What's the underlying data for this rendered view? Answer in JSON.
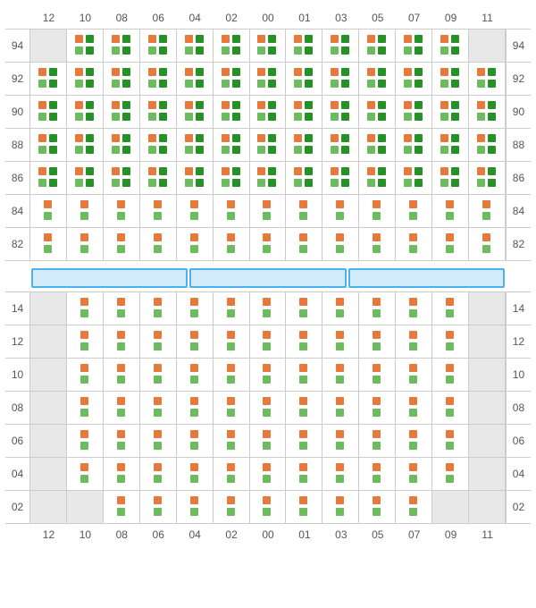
{
  "colors": {
    "orange": "#e67a3c",
    "green": "#6dbb5f",
    "darkgreen": "#269126",
    "grey_bg": "#e8e8e8",
    "grid_line": "#cccccc",
    "label": "#555555",
    "divider_border": "#4db1f0",
    "divider_fill": "#d3ecfb",
    "page_bg": "#ffffff"
  },
  "cols": [
    "12",
    "10",
    "08",
    "06",
    "04",
    "02",
    "00",
    "01",
    "03",
    "05",
    "07",
    "09",
    "11"
  ],
  "top_rows": [
    "94",
    "92",
    "90",
    "88",
    "86",
    "84",
    "82"
  ],
  "bot_rows": [
    "14",
    "12",
    "10",
    "08",
    "06",
    "04",
    "02"
  ],
  "divider_segments": 3,
  "seat": {
    "double": {
      "tl": "orange",
      "bl": "green",
      "tr": "darkgreen",
      "br": "darkgreen"
    },
    "single": {
      "t": "orange",
      "b": "green"
    }
  },
  "top_layout": [
    {
      "row": "94",
      "c": {
        "12": "g",
        "10": "d",
        "08": "d",
        "06": "d",
        "04": "d",
        "02": "d",
        "00": "d",
        "01": "d",
        "03": "d",
        "05": "d",
        "07": "d",
        "09": "d",
        "11": "g"
      }
    },
    {
      "row": "92",
      "c": {
        "12": "d",
        "10": "d",
        "08": "d",
        "06": "d",
        "04": "d",
        "02": "d",
        "00": "d",
        "01": "d",
        "03": "d",
        "05": "d",
        "07": "d",
        "09": "d",
        "11": "d"
      }
    },
    {
      "row": "90",
      "c": {
        "12": "d",
        "10": "d",
        "08": "d",
        "06": "d",
        "04": "d",
        "02": "d",
        "00": "d",
        "01": "d",
        "03": "d",
        "05": "d",
        "07": "d",
        "09": "d",
        "11": "d"
      }
    },
    {
      "row": "88",
      "c": {
        "12": "d",
        "10": "d",
        "08": "d",
        "06": "d",
        "04": "d",
        "02": "d",
        "00": "d",
        "01": "d",
        "03": "d",
        "05": "d",
        "07": "d",
        "09": "d",
        "11": "d"
      }
    },
    {
      "row": "86",
      "c": {
        "12": "d",
        "10": "d",
        "08": "d",
        "06": "d",
        "04": "d",
        "02": "d",
        "00": "d",
        "01": "d",
        "03": "d",
        "05": "d",
        "07": "d",
        "09": "d",
        "11": "d"
      }
    },
    {
      "row": "84",
      "c": {
        "12": "s",
        "10": "s",
        "08": "s",
        "06": "s",
        "04": "s",
        "02": "s",
        "00": "s",
        "01": "s",
        "03": "s",
        "05": "s",
        "07": "s",
        "09": "s",
        "11": "s"
      }
    },
    {
      "row": "82",
      "c": {
        "12": "s",
        "10": "s",
        "08": "s",
        "06": "s",
        "04": "s",
        "02": "s",
        "00": "s",
        "01": "s",
        "03": "s",
        "05": "s",
        "07": "s",
        "09": "s",
        "11": "s"
      }
    }
  ],
  "bot_layout": [
    {
      "row": "14",
      "c": {
        "12": "g",
        "10": "s",
        "08": "s",
        "06": "s",
        "04": "s",
        "02": "s",
        "00": "s",
        "01": "s",
        "03": "s",
        "05": "s",
        "07": "s",
        "09": "s",
        "11": "g"
      }
    },
    {
      "row": "12",
      "c": {
        "12": "g",
        "10": "s",
        "08": "s",
        "06": "s",
        "04": "s",
        "02": "s",
        "00": "s",
        "01": "s",
        "03": "s",
        "05": "s",
        "07": "s",
        "09": "s",
        "11": "g"
      }
    },
    {
      "row": "10",
      "c": {
        "12": "g",
        "10": "s",
        "08": "s",
        "06": "s",
        "04": "s",
        "02": "s",
        "00": "s",
        "01": "s",
        "03": "s",
        "05": "s",
        "07": "s",
        "09": "s",
        "11": "g"
      }
    },
    {
      "row": "08",
      "c": {
        "12": "g",
        "10": "s",
        "08": "s",
        "06": "s",
        "04": "s",
        "02": "s",
        "00": "s",
        "01": "s",
        "03": "s",
        "05": "s",
        "07": "s",
        "09": "s",
        "11": "g"
      }
    },
    {
      "row": "06",
      "c": {
        "12": "g",
        "10": "s",
        "08": "s",
        "06": "s",
        "04": "s",
        "02": "s",
        "00": "s",
        "01": "s",
        "03": "s",
        "05": "s",
        "07": "s",
        "09": "s",
        "11": "g"
      }
    },
    {
      "row": "04",
      "c": {
        "12": "g",
        "10": "s",
        "08": "s",
        "06": "s",
        "04": "s",
        "02": "s",
        "00": "s",
        "01": "s",
        "03": "s",
        "05": "s",
        "07": "s",
        "09": "s",
        "11": "g"
      }
    },
    {
      "row": "02",
      "c": {
        "12": "g",
        "10": "g",
        "08": "s",
        "06": "s",
        "04": "s",
        "02": "s",
        "00": "s",
        "01": "s",
        "03": "s",
        "05": "s",
        "07": "s",
        "09": "g",
        "11": "g"
      }
    }
  ]
}
